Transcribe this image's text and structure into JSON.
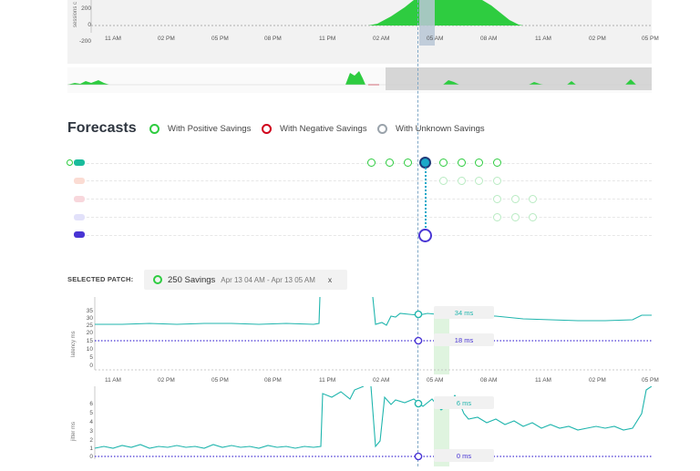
{
  "top_chart": {
    "y_axis_label": "sessions c",
    "y_ticks": [
      "200",
      "0",
      "-200"
    ],
    "x_ticks": [
      "11 AM",
      "02 PM",
      "05 PM",
      "08 PM",
      "11 PM",
      "02 AM",
      "05 AM",
      "08 AM",
      "11 AM",
      "02 PM",
      "05 PM"
    ]
  },
  "forecasts": {
    "title": "Forecasts",
    "legend": [
      {
        "label": "With Positive Savings",
        "color": "#2ecc40"
      },
      {
        "label": "With Negative Savings",
        "color": "#d0021b"
      },
      {
        "label": "With Unknown Savings",
        "color": "#9aa3ab"
      }
    ],
    "rows": [
      {
        "color": "#1abc9c"
      },
      {
        "color": "#fbdcd3"
      },
      {
        "color": "#f8d7dc"
      },
      {
        "color": "#e2e1fa"
      },
      {
        "color": "#4834d4"
      }
    ]
  },
  "selected_patch": {
    "label": "SELECTED PATCH:",
    "savings": "250 Savings",
    "range": "Apr 13 04 AM - Apr 13 05 AM",
    "close": "x"
  },
  "latency_chart": {
    "y_axis_label": "latency ms",
    "y_ticks": [
      "35",
      "30",
      "25",
      "20",
      "15",
      "10",
      "5",
      "0"
    ],
    "x_ticks": [
      "11 AM",
      "02 PM",
      "05 PM",
      "08 PM",
      "11 PM",
      "02 AM",
      "05 AM",
      "08 AM",
      "11 AM",
      "02 PM",
      "05 PM"
    ],
    "tooltip_top": "34 ms",
    "tooltip_bottom": "18 ms"
  },
  "jitter_chart": {
    "y_axis_label": "jitter ms",
    "y_ticks": [
      "6",
      "5",
      "4",
      "3",
      "2",
      "1",
      "0"
    ],
    "tooltip_top": "6 ms",
    "tooltip_bottom": "0 ms"
  },
  "colors": {
    "positive": "#2ecc40",
    "teal": "#1fb5ad",
    "purple": "#4834d4",
    "cursor": "#7fa7c6"
  }
}
